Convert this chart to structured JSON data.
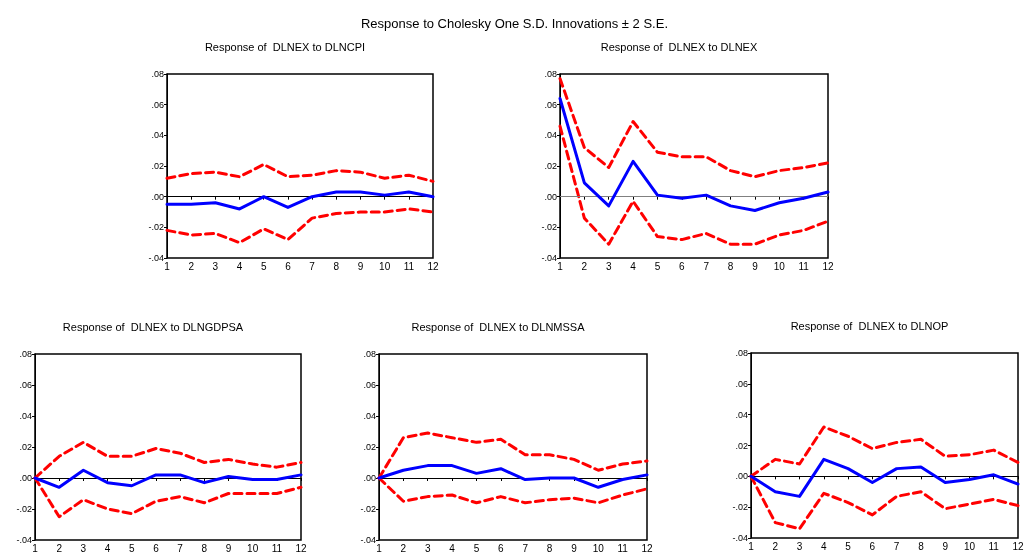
{
  "chart_data": [
    {
      "type": "other",
      "title": "Response to Cholesky One S.D. Innovations ± 2 S.E."
    },
    {
      "type": "line",
      "title": "Response of  DLNEX to DLNCPI",
      "x": [
        1,
        2,
        3,
        4,
        5,
        6,
        7,
        8,
        9,
        10,
        11,
        12
      ],
      "xlim": [
        1,
        12
      ],
      "xticks": [
        1,
        2,
        3,
        4,
        5,
        6,
        7,
        8,
        9,
        10,
        11,
        12
      ],
      "ylim": [
        -0.04,
        0.08
      ],
      "yticks": [
        {
          "value": -0.04,
          "label": "-.04"
        },
        {
          "value": -0.02,
          "label": "-.02"
        },
        {
          "value": 0,
          "label": ".00"
        },
        {
          "value": 0.02,
          "label": ".02"
        },
        {
          "value": 0.04,
          "label": ".04"
        },
        {
          "value": 0.06,
          "label": ".06"
        },
        {
          "value": 0.08,
          "label": ".08"
        }
      ],
      "grid": false,
      "legend": false,
      "marker": "none",
      "ref_lines": [
        {
          "axis": "y",
          "value": 0,
          "color": "#000000"
        }
      ],
      "series": [
        {
          "color": "#0000ff",
          "line_style": "solid",
          "values": [
            -0.005,
            -0.005,
            -0.004,
            -0.008,
            0.0,
            -0.007,
            0.0,
            0.003,
            0.003,
            0.001,
            0.003,
            0.0
          ]
        },
        {
          "color": "#ff0000",
          "line_style": "dashed",
          "values": [
            0.012,
            0.015,
            0.016,
            0.013,
            0.021,
            0.013,
            0.014,
            0.017,
            0.016,
            0.012,
            0.014,
            0.01
          ]
        },
        {
          "color": "#ff0000",
          "line_style": "dashed",
          "values": [
            -0.022,
            -0.025,
            -0.024,
            -0.03,
            -0.021,
            -0.028,
            -0.014,
            -0.011,
            -0.01,
            -0.01,
            -0.008,
            -0.01
          ]
        }
      ]
    },
    {
      "type": "line",
      "title": "Response of  DLNEX to DLNEX",
      "x": [
        1,
        2,
        3,
        4,
        5,
        6,
        7,
        8,
        9,
        10,
        11,
        12
      ],
      "xlim": [
        1,
        12
      ],
      "xticks": [
        1,
        2,
        3,
        4,
        5,
        6,
        7,
        8,
        9,
        10,
        11,
        12
      ],
      "ylim": [
        -0.04,
        0.08
      ],
      "yticks": [
        {
          "value": -0.04,
          "label": "-.04"
        },
        {
          "value": -0.02,
          "label": "-.02"
        },
        {
          "value": 0,
          "label": ".00"
        },
        {
          "value": 0.02,
          "label": ".02"
        },
        {
          "value": 0.04,
          "label": ".04"
        },
        {
          "value": 0.06,
          "label": ".06"
        },
        {
          "value": 0.08,
          "label": ".08"
        }
      ],
      "grid": false,
      "legend": false,
      "marker": "none",
      "ref_lines": [
        {
          "axis": "y",
          "value": 0,
          "color": "#808080"
        }
      ],
      "series": [
        {
          "color": "#0000ff",
          "line_style": "solid",
          "values": [
            0.064,
            0.009,
            -0.006,
            0.023,
            0.001,
            -0.001,
            0.001,
            -0.006,
            -0.009,
            -0.004,
            -0.001,
            0.003
          ]
        },
        {
          "color": "#ff0000",
          "line_style": "dashed",
          "values": [
            0.077,
            0.032,
            0.019,
            0.049,
            0.029,
            0.026,
            0.026,
            0.017,
            0.013,
            0.017,
            0.019,
            0.022
          ]
        },
        {
          "color": "#ff0000",
          "line_style": "dashed",
          "values": [
            0.046,
            -0.014,
            -0.031,
            -0.003,
            -0.026,
            -0.028,
            -0.024,
            -0.031,
            -0.031,
            -0.025,
            -0.022,
            -0.016
          ]
        }
      ]
    },
    {
      "type": "line",
      "title": "Response of  DLNEX to DLNGDPSA",
      "x": [
        1,
        2,
        3,
        4,
        5,
        6,
        7,
        8,
        9,
        10,
        11,
        12
      ],
      "xlim": [
        1,
        12
      ],
      "xticks": [
        1,
        2,
        3,
        4,
        5,
        6,
        7,
        8,
        9,
        10,
        11,
        12
      ],
      "ylim": [
        -0.04,
        0.08
      ],
      "yticks": [
        {
          "value": -0.04,
          "label": "-.04"
        },
        {
          "value": -0.02,
          "label": "-.02"
        },
        {
          "value": 0,
          "label": ".00"
        },
        {
          "value": 0.02,
          "label": ".02"
        },
        {
          "value": 0.04,
          "label": ".04"
        },
        {
          "value": 0.06,
          "label": ".06"
        },
        {
          "value": 0.08,
          "label": ".08"
        }
      ],
      "grid": false,
      "legend": false,
      "marker": "none",
      "ref_lines": [
        {
          "axis": "y",
          "value": 0,
          "color": "#000000"
        }
      ],
      "series": [
        {
          "color": "#0000ff",
          "line_style": "solid",
          "values": [
            0.0,
            -0.006,
            0.005,
            -0.003,
            -0.005,
            0.002,
            0.002,
            -0.003,
            0.001,
            -0.001,
            -0.001,
            0.002
          ]
        },
        {
          "color": "#ff0000",
          "line_style": "dashed",
          "values": [
            0.0,
            0.014,
            0.023,
            0.014,
            0.014,
            0.019,
            0.016,
            0.01,
            0.012,
            0.009,
            0.007,
            0.01
          ]
        },
        {
          "color": "#ff0000",
          "line_style": "dashed",
          "values": [
            0.0,
            -0.025,
            -0.014,
            -0.02,
            -0.023,
            -0.015,
            -0.012,
            -0.016,
            -0.01,
            -0.01,
            -0.01,
            -0.006
          ]
        }
      ]
    },
    {
      "type": "line",
      "title": "Response of  DLNEX to DLNMSSA",
      "x": [
        1,
        2,
        3,
        4,
        5,
        6,
        7,
        8,
        9,
        10,
        11,
        12
      ],
      "xlim": [
        1,
        12
      ],
      "xticks": [
        1,
        2,
        3,
        4,
        5,
        6,
        7,
        8,
        9,
        10,
        11,
        12
      ],
      "ylim": [
        -0.04,
        0.08
      ],
      "yticks": [
        {
          "value": -0.04,
          "label": "-.04"
        },
        {
          "value": -0.02,
          "label": "-.02"
        },
        {
          "value": 0,
          "label": ".00"
        },
        {
          "value": 0.02,
          "label": ".02"
        },
        {
          "value": 0.04,
          "label": ".04"
        },
        {
          "value": 0.06,
          "label": ".06"
        },
        {
          "value": 0.08,
          "label": ".08"
        }
      ],
      "grid": false,
      "legend": false,
      "marker": "none",
      "ref_lines": [
        {
          "axis": "y",
          "value": 0,
          "color": "#000000"
        }
      ],
      "series": [
        {
          "color": "#0000ff",
          "line_style": "solid",
          "values": [
            0.0,
            0.005,
            0.008,
            0.008,
            0.003,
            0.006,
            -0.001,
            0.0,
            0.0,
            -0.006,
            -0.001,
            0.002
          ]
        },
        {
          "color": "#ff0000",
          "line_style": "dashed",
          "values": [
            0.0,
            0.026,
            0.029,
            0.026,
            0.023,
            0.025,
            0.015,
            0.015,
            0.012,
            0.005,
            0.009,
            0.011
          ]
        },
        {
          "color": "#ff0000",
          "line_style": "dashed",
          "values": [
            0.0,
            -0.015,
            -0.012,
            -0.011,
            -0.016,
            -0.012,
            -0.016,
            -0.014,
            -0.013,
            -0.016,
            -0.011,
            -0.007
          ]
        }
      ]
    },
    {
      "type": "line",
      "title": "Response of  DLNEX to DLNOP",
      "x": [
        1,
        2,
        3,
        4,
        5,
        6,
        7,
        8,
        9,
        10,
        11,
        12
      ],
      "xlim": [
        1,
        12
      ],
      "xticks": [
        1,
        2,
        3,
        4,
        5,
        6,
        7,
        8,
        9,
        10,
        11,
        12
      ],
      "ylim": [
        -0.04,
        0.08
      ],
      "yticks": [
        {
          "value": -0.04,
          "label": "-.04"
        },
        {
          "value": -0.02,
          "label": "-.02"
        },
        {
          "value": 0,
          "label": ".00"
        },
        {
          "value": 0.02,
          "label": ".02"
        },
        {
          "value": 0.04,
          "label": ".04"
        },
        {
          "value": 0.06,
          "label": ".06"
        },
        {
          "value": 0.08,
          "label": ".08"
        }
      ],
      "grid": false,
      "legend": false,
      "marker": "none",
      "ref_lines": [
        {
          "axis": "y",
          "value": 0,
          "color": "#000000"
        }
      ],
      "series": [
        {
          "color": "#0000ff",
          "line_style": "solid",
          "values": [
            0.0,
            -0.01,
            -0.013,
            0.011,
            0.005,
            -0.004,
            0.005,
            0.006,
            -0.004,
            -0.002,
            0.001,
            -0.005
          ]
        },
        {
          "color": "#ff0000",
          "line_style": "dashed",
          "values": [
            0.0,
            0.011,
            0.008,
            0.032,
            0.026,
            0.018,
            0.022,
            0.024,
            0.013,
            0.014,
            0.017,
            0.009
          ]
        },
        {
          "color": "#ff0000",
          "line_style": "dashed",
          "values": [
            0.0,
            -0.03,
            -0.034,
            -0.011,
            -0.017,
            -0.025,
            -0.013,
            -0.01,
            -0.021,
            -0.018,
            -0.015,
            -0.019
          ]
        }
      ]
    }
  ]
}
